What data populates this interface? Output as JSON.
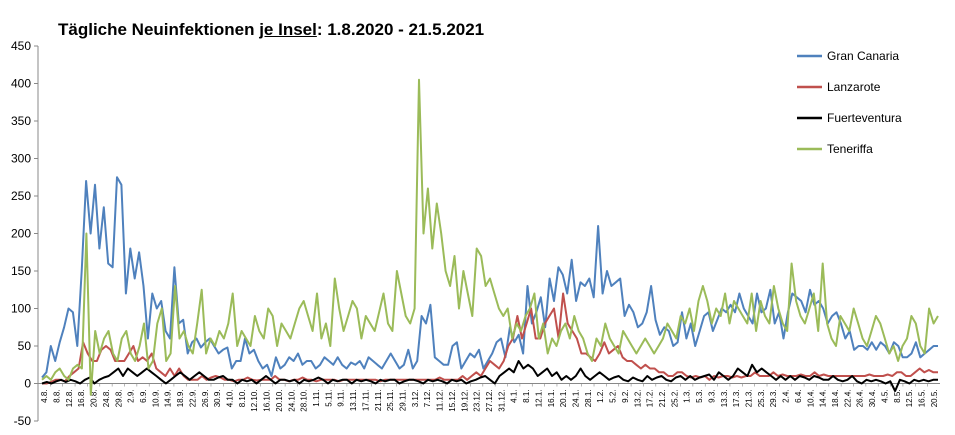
{
  "chart_data": {
    "type": "line",
    "title_parts": [
      "Tägliche Neuinfektionen ",
      "je Insel",
      ": 1.8.2020 - 21.5.2021"
    ],
    "ylim": [
      -50,
      450
    ],
    "yticks": [
      -50,
      0,
      50,
      100,
      150,
      200,
      250,
      300,
      350,
      400,
      450
    ],
    "grid": false,
    "legend_position": "right",
    "x_labels": [
      "4.8.",
      "8.8.",
      "12.8.",
      "16.8.",
      "20.8.",
      "24.8.",
      "29.8.",
      "2.9.",
      "6.9.",
      "10.9.",
      "14.9.",
      "18.9.",
      "22.9.",
      "26.9.",
      "30.9.",
      "4.10.",
      "8.10.",
      "12.10.",
      "16.10.",
      "20.10.",
      "24.10.",
      "28.10.",
      "1.11.",
      "5.11.",
      "9.11.",
      "13.11.",
      "17.11.",
      "21.11.",
      "25.11.",
      "29.11.",
      "3.12.",
      "7.12.",
      "11.12.",
      "15.12.",
      "19.12.",
      "23.12.",
      "27.12.",
      "31.12.",
      "4.1.",
      "8.1.",
      "12.1.",
      "16.1.",
      "20.1.",
      "24.1.",
      "28.1.",
      "1.2.",
      "5.2.",
      "9.2.",
      "13.2.",
      "17.2.",
      "21.2.",
      "25.2.",
      "1.3.",
      "5.3.",
      "9.3.",
      "13.3.",
      "17.3.",
      "21.3.",
      "25.3.",
      "29.3.",
      "2.4.",
      "6.4.",
      "10.4.",
      "14.4.",
      "18.4.",
      "22.4.",
      "26.4.",
      "30.4.",
      "4.5.",
      "8.5.",
      "12.5.",
      "16.5.",
      "20.5."
    ],
    "series": [
      {
        "name": "Gran Canaria",
        "color": "#4f81bd",
        "values": [
          8,
          15,
          50,
          30,
          55,
          75,
          100,
          95,
          50,
          150,
          270,
          200,
          265,
          180,
          235,
          160,
          155,
          275,
          265,
          120,
          180,
          140,
          175,
          130,
          60,
          120,
          100,
          110,
          70,
          60,
          155,
          80,
          85,
          40,
          55,
          60,
          48,
          55,
          60,
          50,
          40,
          45,
          48,
          20,
          30,
          30,
          60,
          40,
          45,
          30,
          20,
          25,
          10,
          35,
          20,
          25,
          35,
          30,
          40,
          25,
          30,
          30,
          20,
          25,
          35,
          30,
          25,
          35,
          25,
          20,
          28,
          25,
          30,
          20,
          35,
          30,
          25,
          20,
          30,
          40,
          30,
          20,
          25,
          45,
          20,
          30,
          90,
          80,
          105,
          35,
          30,
          25,
          25,
          50,
          55,
          20,
          30,
          40,
          35,
          45,
          20,
          30,
          40,
          55,
          60,
          35,
          75,
          55,
          65,
          40,
          130,
          80,
          95,
          115,
          75,
          140,
          110,
          155,
          145,
          120,
          165,
          110,
          135,
          130,
          140,
          115,
          210,
          120,
          150,
          130,
          135,
          140,
          90,
          105,
          95,
          75,
          80,
          95,
          130,
          85,
          65,
          75,
          70,
          50,
          55,
          95,
          60,
          80,
          50,
          70,
          90,
          95,
          70,
          85,
          100,
          95,
          105,
          95,
          120,
          100,
          90,
          80,
          120,
          95,
          100,
          125,
          80,
          95,
          60,
          95,
          120,
          115,
          110,
          95,
          125,
          105,
          110,
          100,
          80,
          90,
          95,
          80,
          60,
          70,
          45,
          50,
          50,
          45,
          55,
          45,
          55,
          50,
          40,
          55,
          50,
          35,
          35,
          40,
          55,
          35,
          40,
          45,
          50,
          50
        ]
      },
      {
        "name": "Lanzarote",
        "color": "#c0504d",
        "values": [
          0,
          0,
          2,
          5,
          5,
          3,
          10,
          15,
          20,
          55,
          40,
          30,
          30,
          45,
          50,
          45,
          30,
          30,
          30,
          40,
          50,
          30,
          35,
          30,
          40,
          20,
          15,
          10,
          20,
          10,
          20,
          10,
          5,
          5,
          5,
          10,
          5,
          8,
          10,
          8,
          5,
          5,
          3,
          5,
          5,
          8,
          5,
          4,
          5,
          5,
          5,
          10,
          5,
          5,
          3,
          5,
          5,
          8,
          5,
          5,
          3,
          5,
          5,
          5,
          5,
          3,
          5,
          5,
          5,
          5,
          5,
          5,
          5,
          5,
          3,
          5,
          5,
          5,
          5,
          5,
          5,
          5,
          5,
          5,
          5,
          5,
          5,
          8,
          5,
          5,
          5,
          5,
          10,
          5,
          10,
          15,
          10,
          20,
          30,
          25,
          20,
          30,
          50,
          60,
          90,
          60,
          80,
          100,
          60,
          60,
          80,
          90,
          100,
          60,
          120,
          80,
          70,
          60,
          40,
          40,
          35,
          30,
          40,
          55,
          40,
          45,
          50,
          35,
          30,
          30,
          25,
          20,
          25,
          20,
          20,
          15,
          15,
          10,
          10,
          15,
          15,
          10,
          8,
          10,
          8,
          10,
          5,
          10,
          8,
          10,
          10,
          8,
          10,
          8,
          10,
          10,
          15,
          10,
          10,
          10,
          15,
          10,
          12,
          10,
          10,
          10,
          12,
          10,
          10,
          15,
          10,
          12,
          10,
          10,
          10,
          10,
          10,
          10,
          10,
          10,
          10,
          12,
          10,
          10,
          10,
          12,
          10,
          15,
          15,
          10,
          10,
          15,
          20,
          15,
          18,
          15,
          15
        ]
      },
      {
        "name": "Fuerteventura",
        "color": "#000000",
        "values": [
          0,
          2,
          0,
          3,
          5,
          2,
          5,
          3,
          0,
          5,
          8,
          0,
          5,
          8,
          10,
          15,
          20,
          10,
          20,
          15,
          10,
          15,
          20,
          15,
          10,
          5,
          0,
          5,
          10,
          15,
          10,
          5,
          10,
          15,
          10,
          5,
          5,
          8,
          10,
          5,
          5,
          0,
          5,
          3,
          5,
          0,
          5,
          10,
          5,
          0,
          5,
          5,
          3,
          5,
          0,
          5,
          3,
          5,
          8,
          5,
          0,
          5,
          3,
          5,
          5,
          0,
          5,
          3,
          5,
          3,
          0,
          5,
          3,
          5,
          5,
          0,
          3,
          5,
          5,
          3,
          0,
          5,
          3,
          5,
          3,
          0,
          5,
          3,
          5,
          0,
          3,
          5,
          8,
          10,
          5,
          0,
          10,
          15,
          20,
          15,
          30,
          20,
          25,
          20,
          10,
          15,
          20,
          10,
          15,
          5,
          10,
          5,
          10,
          20,
          10,
          5,
          10,
          15,
          10,
          5,
          8,
          10,
          5,
          3,
          8,
          5,
          3,
          10,
          5,
          8,
          10,
          5,
          3,
          8,
          10,
          5,
          10,
          5,
          8,
          10,
          12,
          5,
          15,
          10,
          5,
          10,
          20,
          15,
          10,
          25,
          15,
          20,
          15,
          10,
          5,
          10,
          5,
          10,
          5,
          10,
          8,
          5,
          10,
          8,
          5,
          5,
          10,
          5,
          3,
          5,
          10,
          3,
          0,
          5,
          3,
          5,
          3,
          0,
          3,
          -10,
          5,
          3,
          0,
          5,
          3,
          5,
          3,
          5,
          5
        ]
      },
      {
        "name": "Teneriffa",
        "color": "#9bbb59",
        "values": [
          5,
          10,
          5,
          15,
          20,
          10,
          5,
          20,
          25,
          20,
          200,
          -15,
          70,
          40,
          60,
          70,
          40,
          30,
          60,
          70,
          40,
          30,
          50,
          80,
          20,
          30,
          80,
          100,
          30,
          40,
          130,
          60,
          70,
          50,
          40,
          80,
          125,
          40,
          60,
          50,
          70,
          60,
          80,
          120,
          50,
          70,
          60,
          50,
          90,
          70,
          60,
          100,
          90,
          50,
          80,
          70,
          60,
          80,
          100,
          110,
          90,
          70,
          120,
          60,
          80,
          50,
          140,
          100,
          70,
          90,
          110,
          100,
          60,
          90,
          80,
          70,
          95,
          120,
          80,
          70,
          150,
          120,
          90,
          80,
          100,
          405,
          200,
          260,
          180,
          240,
          200,
          150,
          130,
          170,
          100,
          150,
          120,
          90,
          180,
          170,
          130,
          140,
          120,
          100,
          90,
          100,
          60,
          80,
          70,
          90,
          100,
          120,
          60,
          80,
          40,
          60,
          50,
          70,
          80,
          60,
          90,
          70,
          60,
          40,
          30,
          60,
          50,
          80,
          60,
          50,
          40,
          70,
          60,
          50,
          40,
          50,
          60,
          50,
          40,
          50,
          60,
          80,
          70,
          60,
          90,
          80,
          100,
          70,
          110,
          130,
          110,
          80,
          100,
          90,
          120,
          80,
          110,
          100,
          90,
          80,
          120,
          70,
          110,
          90,
          80,
          130,
          100,
          80,
          70,
          160,
          110,
          90,
          80,
          100,
          120,
          70,
          160,
          80,
          60,
          50,
          90,
          80,
          70,
          100,
          80,
          60,
          50,
          70,
          90,
          80,
          60,
          40,
          50,
          30,
          50,
          60,
          90,
          80,
          50,
          40,
          100,
          80,
          90
        ]
      }
    ]
  }
}
